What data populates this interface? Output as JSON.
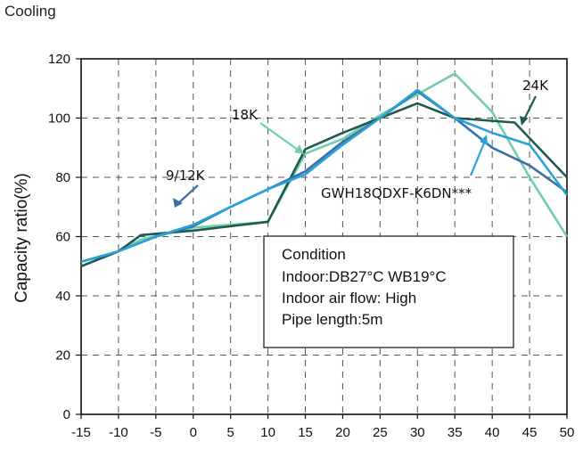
{
  "header": {
    "title": "Cooling"
  },
  "colors": {
    "9/12K": "#3b6fa6",
    "18K": "#6fcfaa",
    "24K": "#1e5a52",
    "GWH18QDXF-K6DN***": "#2aa1d9"
  },
  "chart_data": {
    "type": "line",
    "title": "",
    "xlabel": "",
    "ylabel": "Capacity ratio(%)",
    "xlim": [
      -15,
      50
    ],
    "ylim": [
      0,
      120
    ],
    "xticks": [
      -15,
      -10,
      -5,
      0,
      5,
      10,
      15,
      20,
      25,
      30,
      35,
      40,
      45,
      50
    ],
    "yticks": [
      0,
      20,
      40,
      60,
      80,
      100,
      120
    ],
    "grid": true,
    "series": [
      {
        "name": "18K",
        "x": [
          -15,
          -10,
          -7,
          0,
          10,
          15,
          20,
          25,
          30,
          35,
          40,
          45,
          50
        ],
        "y": [
          50,
          55,
          59,
          63,
          65,
          88,
          93,
          101,
          108,
          115,
          102,
          80,
          60
        ]
      },
      {
        "name": "24K",
        "x": [
          -15,
          -10,
          -7,
          0,
          10,
          15,
          20,
          25,
          30,
          35,
          43,
          50
        ],
        "y": [
          50,
          55,
          60.5,
          62,
          65,
          89.5,
          95,
          100,
          105,
          100,
          98.5,
          80
        ]
      },
      {
        "name": "9/12K",
        "x": [
          -15,
          -10,
          -5,
          0,
          5,
          10,
          15,
          20,
          25,
          30,
          35,
          40,
          45,
          50
        ],
        "y": [
          51.5,
          55,
          60,
          63.5,
          70,
          76,
          82,
          92,
          100,
          109,
          100,
          90,
          84,
          75
        ]
      },
      {
        "name": "GWH18QDXF-K6DN***",
        "x": [
          -15,
          -10,
          -5,
          0,
          5,
          10,
          15,
          20,
          25,
          30,
          35,
          40,
          45,
          50
        ],
        "y": [
          51.5,
          55,
          60,
          64,
          70,
          76,
          81,
          91,
          100,
          109.5,
          100,
          95,
          91,
          74
        ]
      }
    ],
    "annotations": {
      "label_912": "9/12K",
      "label_18": "18K",
      "label_24": "24K",
      "label_model": "GWH18QDXF-K6DN***"
    },
    "condition": {
      "title": "Condition",
      "line1": "Indoor:DB27°C WB19°C",
      "line2": "Indoor air flow: High",
      "line3": "Pipe length:5m"
    }
  }
}
